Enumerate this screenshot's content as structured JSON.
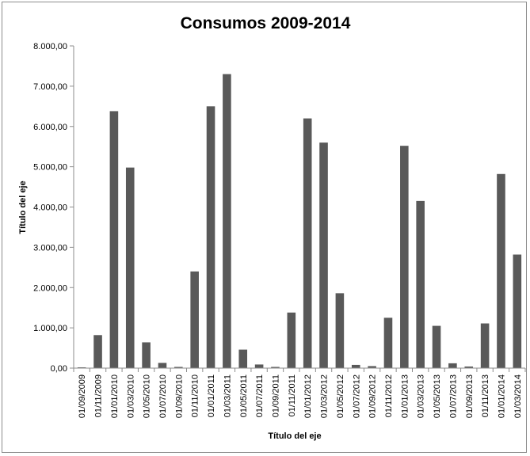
{
  "chart_data": {
    "type": "bar",
    "title": "Consumos 2009-2014",
    "xlabel": "Título del eje",
    "ylabel": "Título del eje",
    "ylim": [
      0,
      8000
    ],
    "yticks": [
      0,
      1000,
      2000,
      3000,
      4000,
      5000,
      6000,
      7000,
      8000
    ],
    "ytick_labels": [
      "0,00",
      "1.000,00",
      "2.000,00",
      "3.000,00",
      "4.000,00",
      "5.000,00",
      "6.000,00",
      "7.000,00",
      "8.000,00"
    ],
    "grid": false,
    "legend": "none",
    "bar_color": "#595959",
    "categories": [
      "01/09/2009",
      "01/11/2009",
      "01/01/2010",
      "01/03/2010",
      "01/05/2010",
      "01/07/2010",
      "01/09/2010",
      "01/11/2010",
      "01/01/2011",
      "01/03/2011",
      "01/05/2011",
      "01/07/2011",
      "01/09/2011",
      "01/11/2011",
      "01/01/2012",
      "01/03/2012",
      "01/05/2012",
      "01/07/2012",
      "01/09/2012",
      "01/11/2012",
      "01/01/2013",
      "01/03/2013",
      "01/05/2013",
      "01/07/2013",
      "01/09/2013",
      "01/11/2013",
      "01/01/2014",
      "01/03/2014"
    ],
    "values": [
      20,
      820,
      6380,
      4980,
      640,
      130,
      30,
      2400,
      6500,
      7300,
      460,
      90,
      30,
      1380,
      6200,
      5600,
      1860,
      80,
      50,
      1250,
      5520,
      4150,
      1050,
      120,
      40,
      1110,
      4820,
      2820
    ]
  }
}
